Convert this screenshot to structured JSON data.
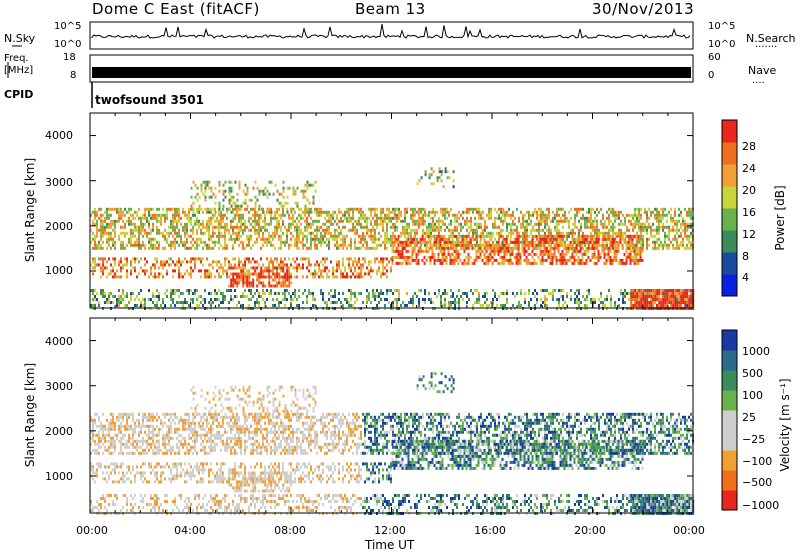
{
  "header": {
    "station": "Dome C East (fitACF)",
    "beam": "Beam 13",
    "date": "30/Nov/2013"
  },
  "top_panels": {
    "nsky_label": "N.Sky",
    "nsky_ticks": [
      "10^5",
      "10^0"
    ],
    "nsearch_label": "N.Search",
    "nsearch_ticks": [
      "10^5",
      "10^0"
    ],
    "freq_label_1": "Freq.",
    "freq_label_2": "[MHz]",
    "freq_ticks": [
      "18",
      "8"
    ],
    "nave_label": "Nave",
    "nave_ticks": [
      "60",
      "0"
    ],
    "cpid_label": "CPID",
    "cpid_value": "twofsound 3501"
  },
  "colors": {
    "power": [
      "#0a1fe0",
      "#1a4aa0",
      "#3a8a5a",
      "#69b34c",
      "#c8d43a",
      "#f2a035",
      "#f07020",
      "#e8281e"
    ],
    "velocity": [
      "#e8281e",
      "#f07020",
      "#f2a035",
      "#cfcfcf",
      "#cfcfcf",
      "#69b34c",
      "#3a8a5a",
      "#2a6a8a",
      "#1a3aa0"
    ]
  },
  "chart_data": [
    {
      "type": "heatmap",
      "name": "power",
      "xlabel": "",
      "ylabel": "Slant Range [km]",
      "xlim": [
        0,
        24
      ],
      "ylim": [
        180,
        4500
      ],
      "yticks": [
        "1000",
        "2000",
        "3000",
        "4000"
      ],
      "ytick_values": [
        1000,
        2000,
        3000,
        4000
      ],
      "colorbar_label": "Power [dB]",
      "colorbar_ticks": [
        "4",
        "8",
        "12",
        "16",
        "20",
        "24",
        "28"
      ],
      "colorbar_range": [
        0,
        32
      ]
    },
    {
      "type": "heatmap",
      "name": "velocity",
      "xlabel": "Time UT",
      "ylabel": "Slant Range [km]",
      "xlim": [
        0,
        24
      ],
      "ylim": [
        180,
        4500
      ],
      "xticks": [
        "00:00",
        "04:00",
        "08:00",
        "12:00",
        "16:00",
        "20:00",
        "00:00"
      ],
      "xtick_values": [
        0,
        4,
        8,
        12,
        16,
        20,
        24
      ],
      "yticks": [
        "1000",
        "2000",
        "3000",
        "4000"
      ],
      "ytick_values": [
        1000,
        2000,
        3000,
        4000
      ],
      "colorbar_label": "Velocity [m s⁻¹]",
      "colorbar_ticks": [
        "1000",
        "500",
        "100",
        "25",
        "−25",
        "−100",
        "−500",
        "−1000"
      ]
    }
  ]
}
